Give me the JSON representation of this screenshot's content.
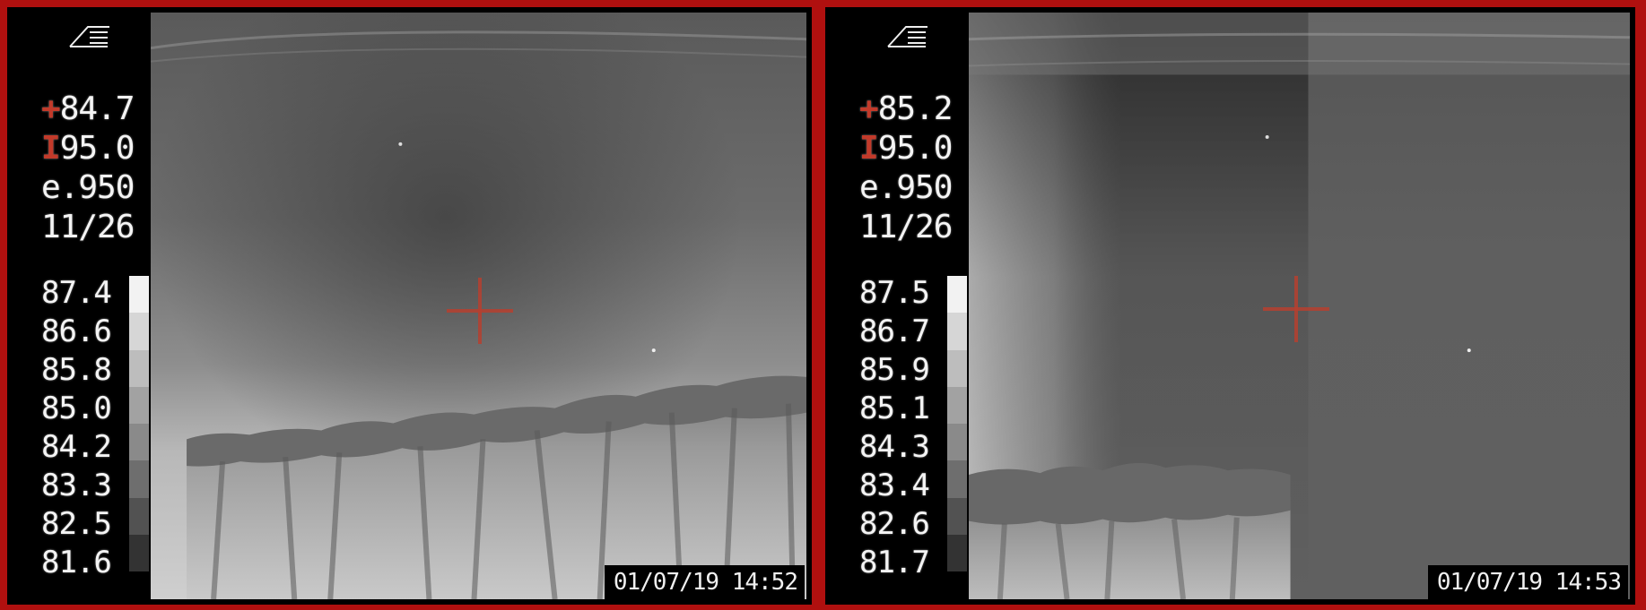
{
  "panels": [
    {
      "readouts": {
        "spot": "84.7",
        "spot_marker": "+",
        "level": "95.0",
        "level_marker": "I",
        "emissivity": "e.950",
        "date": "11/26"
      },
      "scale": [
        "87.4",
        "86.6",
        "85.8",
        "85.0",
        "84.2",
        "83.3",
        "82.5",
        "81.6"
      ],
      "timestamp": "01/07/19 14:52"
    },
    {
      "readouts": {
        "spot": "85.2",
        "spot_marker": "+",
        "level": "95.0",
        "level_marker": "I",
        "emissivity": "e.950",
        "date": "11/26"
      },
      "scale": [
        "87.5",
        "86.7",
        "85.9",
        "85.1",
        "84.3",
        "83.4",
        "82.6",
        "81.7"
      ],
      "timestamp": "01/07/19 14:53"
    }
  ],
  "colors": {
    "border": "#b0100f",
    "crosshair": "#b6402f",
    "scale_gradient": [
      "#f2f2f2",
      "#d6d6d6",
      "#bdbdbd",
      "#a2a2a2",
      "#8a8a8a",
      "#6e6e6e",
      "#525252",
      "#333333"
    ]
  },
  "icons": [
    "camera-logo-icon",
    "crosshair-icon"
  ]
}
